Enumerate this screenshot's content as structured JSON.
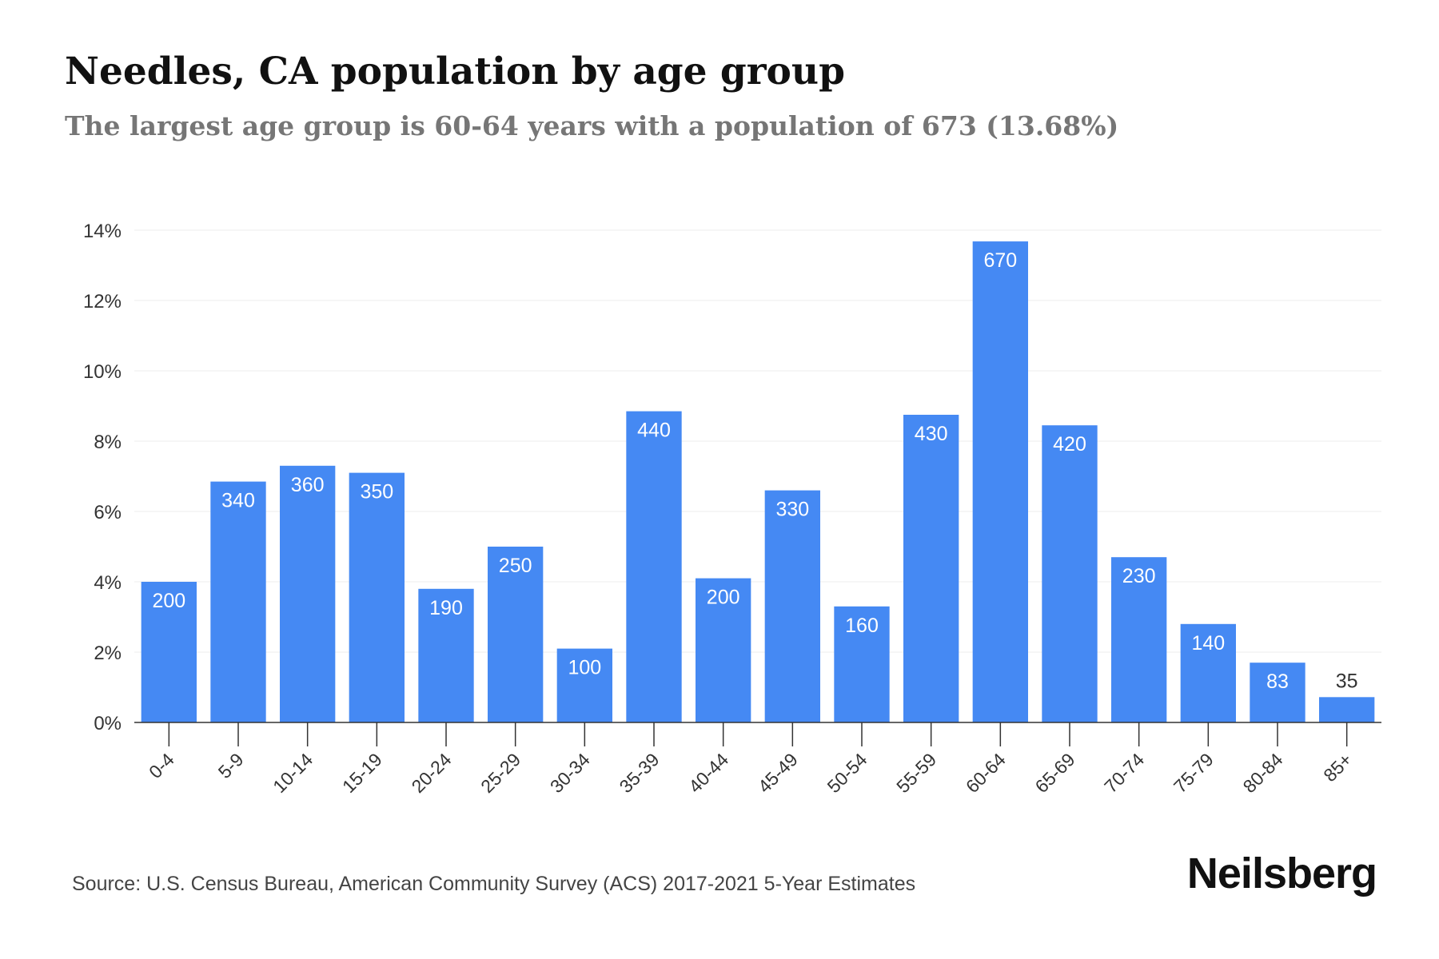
{
  "header": {
    "title": "Needles, CA population by age group",
    "subtitle": "The largest age group is 60-64 years with a population of 673 (13.68%)"
  },
  "footer": {
    "source": "Source: U.S. Census Bureau, American Community Survey (ACS) 2017-2021 5-Year Estimates",
    "brand": "Neilsberg"
  },
  "colors": {
    "bar": "#4589f3",
    "gridline": "#eeeeee",
    "axis": "#333333",
    "label_inside": "#ffffff",
    "label_outside": "#333333"
  },
  "chart_data": {
    "type": "bar",
    "categories": [
      "0-4",
      "5-9",
      "10-14",
      "15-19",
      "20-24",
      "25-29",
      "30-34",
      "35-39",
      "40-44",
      "45-49",
      "50-54",
      "55-59",
      "60-64",
      "65-69",
      "70-74",
      "75-79",
      "80-84",
      "85+"
    ],
    "percent_values": [
      4.0,
      6.85,
      7.3,
      7.1,
      3.8,
      5.0,
      2.1,
      8.85,
      4.1,
      6.6,
      3.3,
      8.75,
      13.68,
      8.45,
      4.7,
      2.8,
      1.7,
      0.72
    ],
    "data_labels": [
      "200",
      "340",
      "360",
      "350",
      "190",
      "250",
      "100",
      "440",
      "200",
      "330",
      "160",
      "430",
      "670",
      "420",
      "230",
      "140",
      "83",
      "35"
    ],
    "ylim": [
      0,
      14
    ],
    "yticks": [
      0,
      2,
      4,
      6,
      8,
      10,
      12,
      14
    ],
    "ytick_labels": [
      "0%",
      "2%",
      "4%",
      "6%",
      "8%",
      "10%",
      "12%",
      "14%"
    ],
    "xlabel": "",
    "ylabel": "",
    "grid": true,
    "legend": "none"
  }
}
